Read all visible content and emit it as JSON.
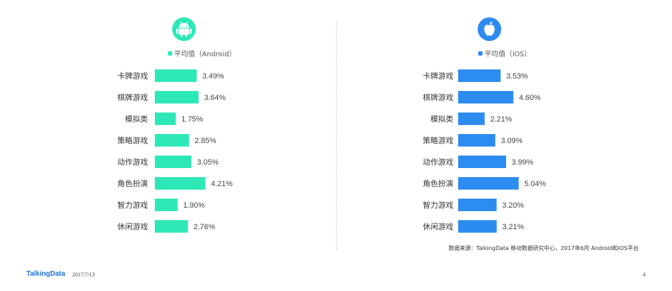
{
  "colors": {
    "android": "#2de8b6",
    "ios": "#2d8cf0",
    "label": "#333333",
    "value": "#444444"
  },
  "icons": {
    "left": "android-icon",
    "right": "apple-icon"
  },
  "chart_data": [
    {
      "type": "bar",
      "orientation": "horizontal",
      "legend": "平均值（Android）",
      "categories": [
        "卡牌游戏",
        "棋牌游戏",
        "模拟类",
        "策略游戏",
        "动作游戏",
        "角色扮演",
        "智力游戏",
        "休闲游戏"
      ],
      "series": [
        {
          "name": "平均值（Android）",
          "values": [
            3.49,
            3.64,
            1.75,
            2.85,
            3.05,
            4.21,
            1.9,
            2.76
          ]
        }
      ],
      "value_labels": [
        "3.49%",
        "3.64%",
        "1.75%",
        "2.85%",
        "3.05%",
        "4.21%",
        "1.90%",
        "2.76%"
      ],
      "unit": "%"
    },
    {
      "type": "bar",
      "orientation": "horizontal",
      "legend": "平均值（iOS）",
      "categories": [
        "卡牌游戏",
        "棋牌游戏",
        "模拟类",
        "策略游戏",
        "动作游戏",
        "角色扮演",
        "智力游戏",
        "休闲游戏"
      ],
      "series": [
        {
          "name": "平均值（iOS）",
          "values": [
            3.53,
            4.6,
            2.21,
            3.09,
            3.99,
            5.04,
            3.2,
            3.21
          ]
        }
      ],
      "value_labels": [
        "3.53%",
        "4.60%",
        "2.21%",
        "3.09%",
        "3.99%",
        "5.04%",
        "3.20%",
        "3.21%"
      ],
      "unit": "%"
    }
  ],
  "source": "数据来源：TalkingData 移动数据研究中心，2017年6月 Android和iOS平台",
  "footer": {
    "brand": "TalkingData",
    "date": "2017/7/13",
    "page": "4"
  }
}
